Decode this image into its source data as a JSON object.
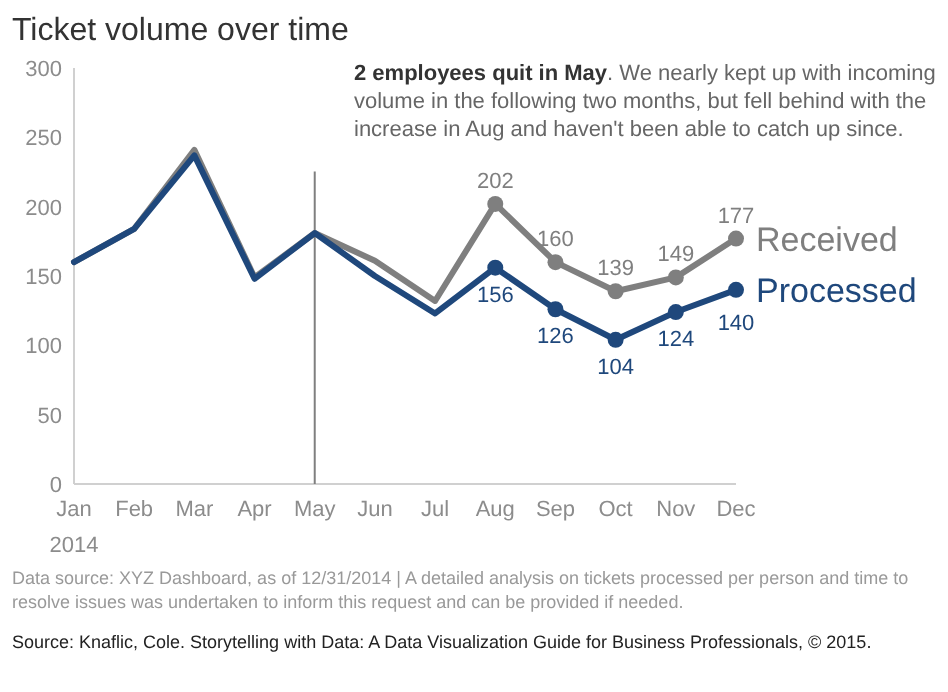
{
  "chart_data": {
    "type": "line",
    "title": "Ticket volume over time",
    "categories": [
      "Jan",
      "Feb",
      "Mar",
      "Apr",
      "May",
      "Jun",
      "Jul",
      "Aug",
      "Sep",
      "Oct",
      "Nov",
      "Dec"
    ],
    "series": [
      {
        "name": "Received",
        "color": "#7f7f7f",
        "values": [
          160,
          184,
          241,
          149,
          181,
          161,
          132,
          202,
          160,
          139,
          149,
          177
        ],
        "value_labels": [
          null,
          null,
          null,
          null,
          null,
          null,
          null,
          "202",
          "160",
          "139",
          "149",
          "177"
        ]
      },
      {
        "name": "Processed",
        "color": "#1f487c",
        "values": [
          160,
          184,
          237,
          148,
          181,
          150,
          123,
          156,
          126,
          104,
          124,
          140
        ],
        "value_labels": [
          null,
          null,
          null,
          null,
          null,
          null,
          null,
          "156",
          "126",
          "104",
          "124",
          "140"
        ]
      }
    ],
    "ylim": [
      0,
      300
    ],
    "yticks": [
      0,
      50,
      100,
      150,
      200,
      250,
      300
    ],
    "grid": false,
    "line_style": "solid",
    "xlabel": "2014",
    "ref_lines": [
      {
        "axis": "x",
        "value": "May",
        "color": "#7f7f7f"
      }
    ],
    "annotations": [
      "2 employees quit in May. We nearly kept up with incoming volume in the following two months, but fell behind with the increase in Aug and haven't been able to catch up since.",
      "Data source: XYZ Dashboard, as of 12/31/2014  |  A detailed analysis on tickets processed per person and time to resolve issues was undertaken to inform this request and can be provided if needed.",
      "Source: Knaflic, Cole. Storytelling with Data: A Data Visualization Guide for Business Professionals, © 2015."
    ]
  }
}
